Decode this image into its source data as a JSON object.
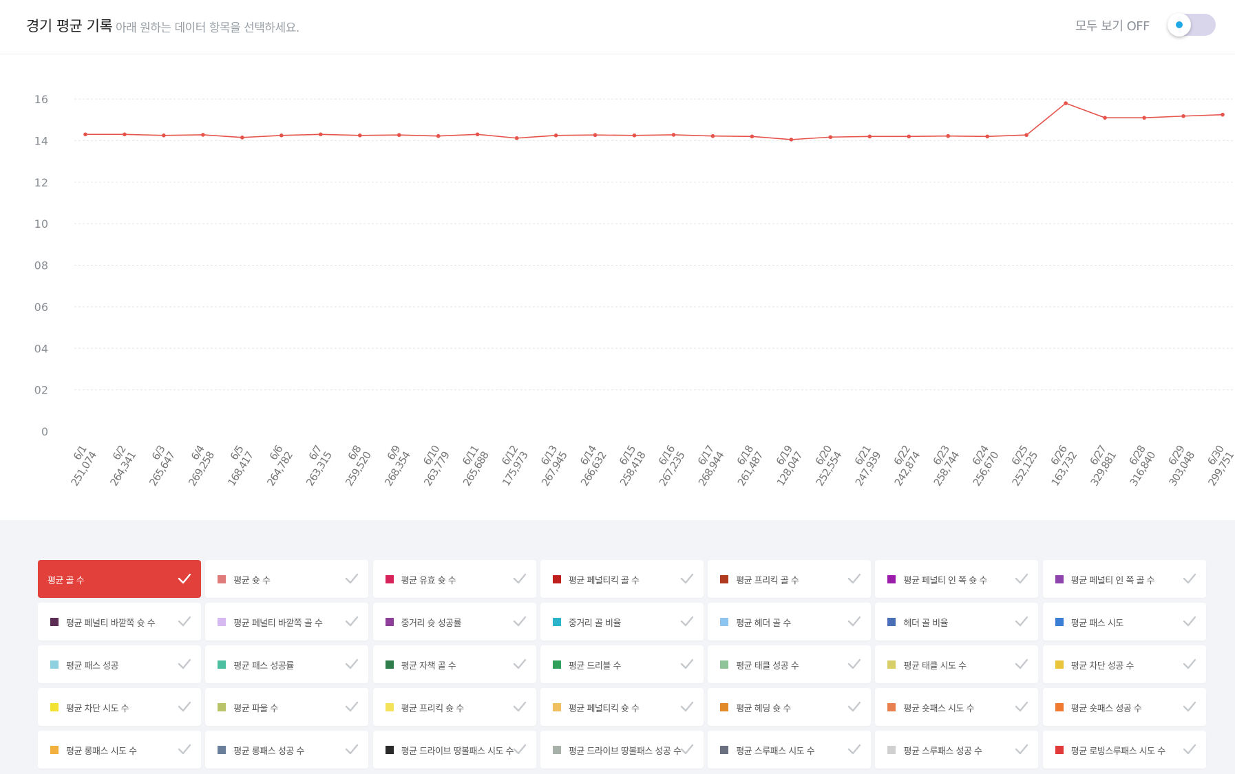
{
  "header": {
    "title": "경기 평균 기록",
    "subtitle": "아래 원하는 데이터 항목을 선택하세요.",
    "toggle_label": "모두 보기 OFF",
    "toggle_state": "off"
  },
  "colors": {
    "accent": "#e2403a",
    "line": "#e5534b",
    "toggle_track": "#d9d6ec",
    "toggle_dot": "#1ea8e6"
  },
  "chart_data": {
    "type": "line",
    "title": "",
    "xlabel": "",
    "ylabel": "",
    "ylim": [
      0,
      16
    ],
    "y_ticks": [
      "0",
      "02",
      "04",
      "06",
      "08",
      "10",
      "12",
      "14",
      "16"
    ],
    "grid": true,
    "categories": [
      {
        "date": "6/1",
        "attendance": "251,074"
      },
      {
        "date": "6/2",
        "attendance": "264,341"
      },
      {
        "date": "6/3",
        "attendance": "265,647"
      },
      {
        "date": "6/4",
        "attendance": "269,258"
      },
      {
        "date": "6/5",
        "attendance": "168,417"
      },
      {
        "date": "6/6",
        "attendance": "264,782"
      },
      {
        "date": "6/7",
        "attendance": "263,315"
      },
      {
        "date": "6/8",
        "attendance": "259,520"
      },
      {
        "date": "6/9",
        "attendance": "268,354"
      },
      {
        "date": "6/10",
        "attendance": "263,779"
      },
      {
        "date": "6/11",
        "attendance": "265,688"
      },
      {
        "date": "6/12",
        "attendance": "175,973"
      },
      {
        "date": "6/13",
        "attendance": "267,945"
      },
      {
        "date": "6/14",
        "attendance": "266,632"
      },
      {
        "date": "6/15",
        "attendance": "258,418"
      },
      {
        "date": "6/16",
        "attendance": "267,235"
      },
      {
        "date": "6/17",
        "attendance": "268,944"
      },
      {
        "date": "6/18",
        "attendance": "261,487"
      },
      {
        "date": "6/19",
        "attendance": "128,047"
      },
      {
        "date": "6/20",
        "attendance": "252,554"
      },
      {
        "date": "6/21",
        "attendance": "247,939"
      },
      {
        "date": "6/22",
        "attendance": "242,874"
      },
      {
        "date": "6/23",
        "attendance": "258,744"
      },
      {
        "date": "6/24",
        "attendance": "256,670"
      },
      {
        "date": "6/25",
        "attendance": "252,125"
      },
      {
        "date": "6/26",
        "attendance": "163,732"
      },
      {
        "date": "6/27",
        "attendance": "329,881"
      },
      {
        "date": "6/28",
        "attendance": "316,840"
      },
      {
        "date": "6/29",
        "attendance": "303,048"
      },
      {
        "date": "6/30",
        "attendance": "299,751"
      }
    ],
    "series": [
      {
        "name": "평균 골 수",
        "color": "#e5534b",
        "values": [
          14.3,
          14.3,
          14.25,
          14.28,
          14.15,
          14.25,
          14.3,
          14.25,
          14.27,
          14.22,
          14.3,
          14.12,
          14.25,
          14.27,
          14.25,
          14.28,
          14.22,
          14.2,
          14.05,
          14.17,
          14.2,
          14.2,
          14.22,
          14.2,
          14.27,
          15.8,
          15.1,
          15.1,
          15.18,
          15.25
        ]
      }
    ]
  },
  "legend_items": [
    {
      "label": "평균 골 수",
      "color": "#e2403a",
      "active": true
    },
    {
      "label": "평균 슛 수",
      "color": "#e07b7b",
      "active": false
    },
    {
      "label": "평균 유효 슛 수",
      "color": "#d6245a",
      "active": false
    },
    {
      "label": "평균 페널티킥 골 수",
      "color": "#c0201d",
      "active": false
    },
    {
      "label": "평균 프리킥 골 수",
      "color": "#b03a20",
      "active": false
    },
    {
      "label": "평균 페널티 인 쪽 슛 수",
      "color": "#9b1eaa",
      "active": false
    },
    {
      "label": "평균 페널티 인 쪽 골 수",
      "color": "#8e44ad",
      "active": false
    },
    {
      "label": "평균 페널티 바깥쪽 슛 수",
      "color": "#5b2c54",
      "active": false
    },
    {
      "label": "평균 페널티 바깥쪽 골 수",
      "color": "#d7b9f2",
      "active": false
    },
    {
      "label": "중거리 슛 성공률",
      "color": "#8e3f9a",
      "active": false
    },
    {
      "label": "중거리 골 비율",
      "color": "#2ab3c9",
      "active": false
    },
    {
      "label": "평균 헤더 골 수",
      "color": "#8fc4ee",
      "active": false
    },
    {
      "label": "헤더 골 비율",
      "color": "#4a6fb5",
      "active": false
    },
    {
      "label": "평균 패스 시도",
      "color": "#3a7fd5",
      "active": false
    },
    {
      "label": "평균 패스 성공",
      "color": "#8ed0e0",
      "active": false
    },
    {
      "label": "평균 패스 성공률",
      "color": "#4cbfa0",
      "active": false
    },
    {
      "label": "평균 자책 골 수",
      "color": "#2e7d4a",
      "active": false
    },
    {
      "label": "평균 드리블 수",
      "color": "#2fa05a",
      "active": false
    },
    {
      "label": "평균 태클 성공 수",
      "color": "#8fc49a",
      "active": false
    },
    {
      "label": "평균 태클 시도 수",
      "color": "#d9cf6a",
      "active": false
    },
    {
      "label": "평균 차단 성공 수",
      "color": "#e8c53a",
      "active": false
    },
    {
      "label": "평균 차단 시도 수",
      "color": "#f1e233",
      "active": false
    },
    {
      "label": "평균 파울 수",
      "color": "#b9c46a",
      "active": false
    },
    {
      "label": "평균 프리킥 슛 수",
      "color": "#f4e35a",
      "active": false
    },
    {
      "label": "평균 페널티킥 슛 수",
      "color": "#f0c060",
      "active": false
    },
    {
      "label": "평균 헤딩 슛 수",
      "color": "#e08a2a",
      "active": false
    },
    {
      "label": "평균 숏패스 시도 수",
      "color": "#e88050",
      "active": false
    },
    {
      "label": "평균 숏패스 성공 수",
      "color": "#f07a30",
      "active": false
    },
    {
      "label": "평균 롱패스 시도 수",
      "color": "#f2b040",
      "active": false
    },
    {
      "label": "평균 롱패스 성공 수",
      "color": "#6a7f9a",
      "active": false
    },
    {
      "label": "평균 드라이브 땅볼패스 시도 수",
      "color": "#2a2a2a",
      "active": false
    },
    {
      "label": "평균 드라이브 땅볼패스 성공 수",
      "color": "#a8b0aa",
      "active": false
    },
    {
      "label": "평균 스루패스 시도 수",
      "color": "#6a7080",
      "active": false
    },
    {
      "label": "평균 스루패스 성공 수",
      "color": "#d0d0d0",
      "active": false
    },
    {
      "label": "평균 로빙스루패스 시도 수",
      "color": "#e03a3a",
      "active": false
    }
  ]
}
